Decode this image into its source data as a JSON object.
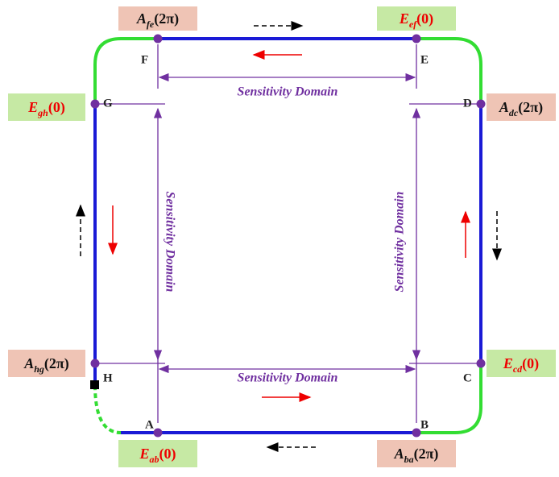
{
  "corners": [
    {
      "letter": "A"
    },
    {
      "letter": "B"
    },
    {
      "letter": "C"
    },
    {
      "letter": "D"
    },
    {
      "letter": "E"
    },
    {
      "letter": "F"
    },
    {
      "letter": "G"
    },
    {
      "letter": "H"
    }
  ],
  "boxes": [
    {
      "main": "A",
      "sub": "fe",
      "arg": "(2π)"
    },
    {
      "main": "E",
      "sub": "ef",
      "arg": "(0)"
    },
    {
      "main": "E",
      "sub": "gh",
      "arg": "(0)"
    },
    {
      "main": "A",
      "sub": "dc",
      "arg": "(2π)"
    },
    {
      "main": "A",
      "sub": "hg",
      "arg": "(2π)"
    },
    {
      "main": "E",
      "sub": "cd",
      "arg": "(0)"
    },
    {
      "main": "E",
      "sub": "ab",
      "arg": "(0)"
    },
    {
      "main": "A",
      "sub": "ba",
      "arg": "(2π)"
    }
  ],
  "domains": [
    {
      "label": "Sensitivity Domain"
    },
    {
      "label": "Sensitivity Domain"
    },
    {
      "label": "Sensitivity Domain"
    },
    {
      "label": "Sensitivity Domain"
    }
  ]
}
